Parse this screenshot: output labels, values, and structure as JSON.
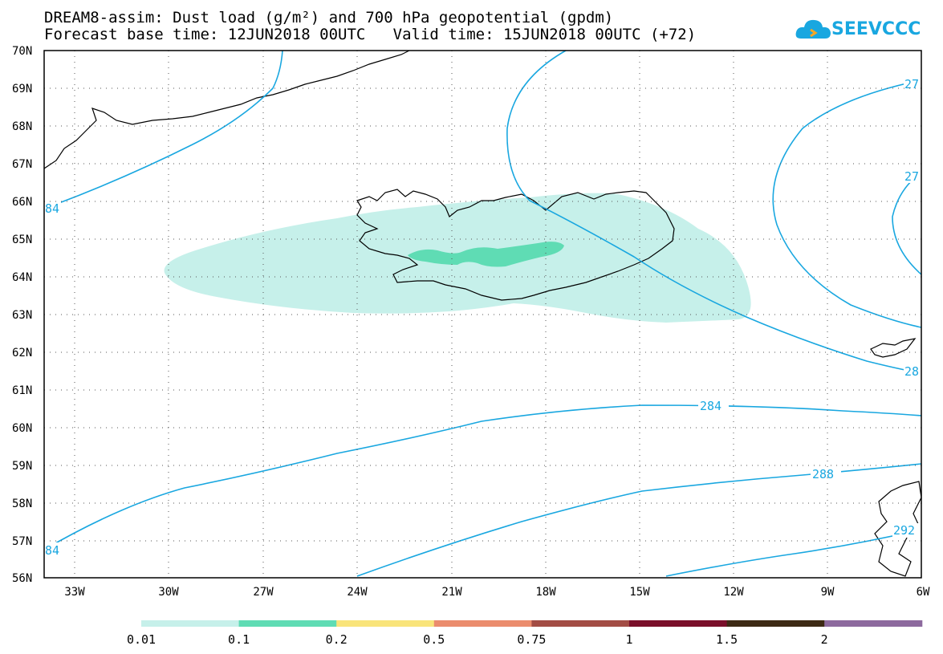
{
  "title_line1": "DREAM8-assim: Dust load (g/m²) and 700 hPa geopotential (gpdm)",
  "title_line2": "Forecast base time: 12JUN2018 00UTC   Valid time: 15JUN2018 00UTC (+72)",
  "logo_text": "SEEVCCC",
  "axes": {
    "lat_labels": [
      "70N",
      "69N",
      "68N",
      "67N",
      "66N",
      "65N",
      "64N",
      "63N",
      "62N",
      "61N",
      "60N",
      "59N",
      "58N",
      "57N",
      "56N"
    ],
    "lon_labels": [
      "33W",
      "30W",
      "27W",
      "24W",
      "21W",
      "18W",
      "15W",
      "12W",
      "9W",
      "6W"
    ]
  },
  "contours": {
    "labels": [
      {
        "id": "c284-tl",
        "text": "84"
      },
      {
        "id": "c284-bl",
        "text": "84"
      },
      {
        "id": "c284-mid",
        "text": "284"
      },
      {
        "id": "c288",
        "text": "288"
      },
      {
        "id": "c292",
        "text": "292"
      },
      {
        "id": "c28-r",
        "text": "28"
      },
      {
        "id": "c27-tr",
        "text": "27"
      },
      {
        "id": "c27-r",
        "text": "27"
      }
    ],
    "color": "#19a7e0"
  },
  "colorbar": {
    "labels": [
      "0.01",
      "0.1",
      "0.2",
      "0.5",
      "0.75",
      "1",
      "1.5",
      "2"
    ],
    "colors": [
      "#c6f0ea",
      "#5fdcb4",
      "#f9e47a",
      "#eb8c6d",
      "#a34d45",
      "#7a0f2a",
      "#3d2a14",
      "#8d6a9e"
    ]
  },
  "dust_colors": {
    "level1": "#c6f0ea",
    "level2": "#5fdcb4"
  }
}
